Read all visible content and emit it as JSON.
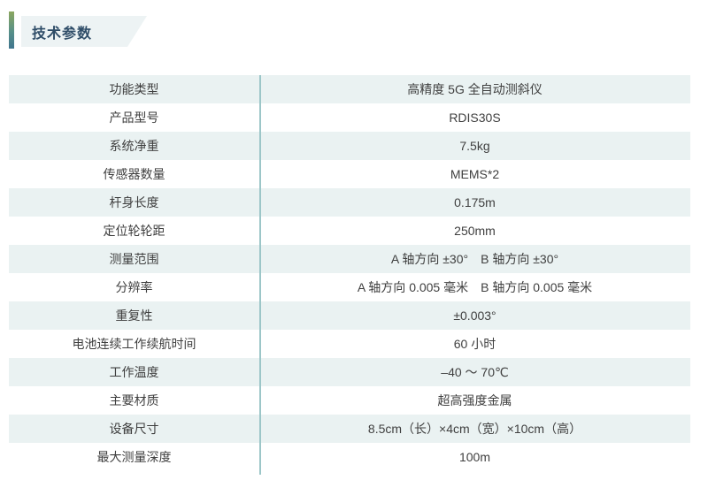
{
  "header": {
    "title": "技术参数"
  },
  "table": {
    "rows": [
      {
        "label": "功能类型",
        "value": "高精度 5G 全自动测斜仪"
      },
      {
        "label": "产品型号",
        "value": "RDIS30S"
      },
      {
        "label": "系统净重",
        "value": "7.5kg"
      },
      {
        "label": "传感器数量",
        "value": "MEMS*2"
      },
      {
        "label": "杆身长度",
        "value": "0.175m"
      },
      {
        "label": "定位轮轮距",
        "value": "250mm"
      },
      {
        "label": "测量范围",
        "value": "A 轴方向 ±30°　B 轴方向 ±30°"
      },
      {
        "label": "分辨率",
        "value": "A 轴方向 0.005 毫米　B 轴方向 0.005 毫米"
      },
      {
        "label": "重复性",
        "value": "±0.003°"
      },
      {
        "label": "电池连续工作续航时间",
        "value": "60 小时"
      },
      {
        "label": "工作温度",
        "value": "–40 ～ 70℃"
      },
      {
        "label": "主要材质",
        "value": "超高强度金属"
      },
      {
        "label": "设备尺寸",
        "value": "8.5cm（长）×4cm（宽）×10cm（高）"
      },
      {
        "label": "最大测量深度",
        "value": "100m"
      }
    ]
  },
  "colors": {
    "row_alt_bg": "#eaf2f2",
    "row_bg": "#ffffff",
    "column_divider": "#9cc6c8",
    "title_text": "#2f4d68",
    "title_tab_bg": "#edf3f4",
    "accent_gradient_top": "#8ba75f",
    "accent_gradient_bottom": "#40758e",
    "body_text": "#3f3f3f"
  }
}
